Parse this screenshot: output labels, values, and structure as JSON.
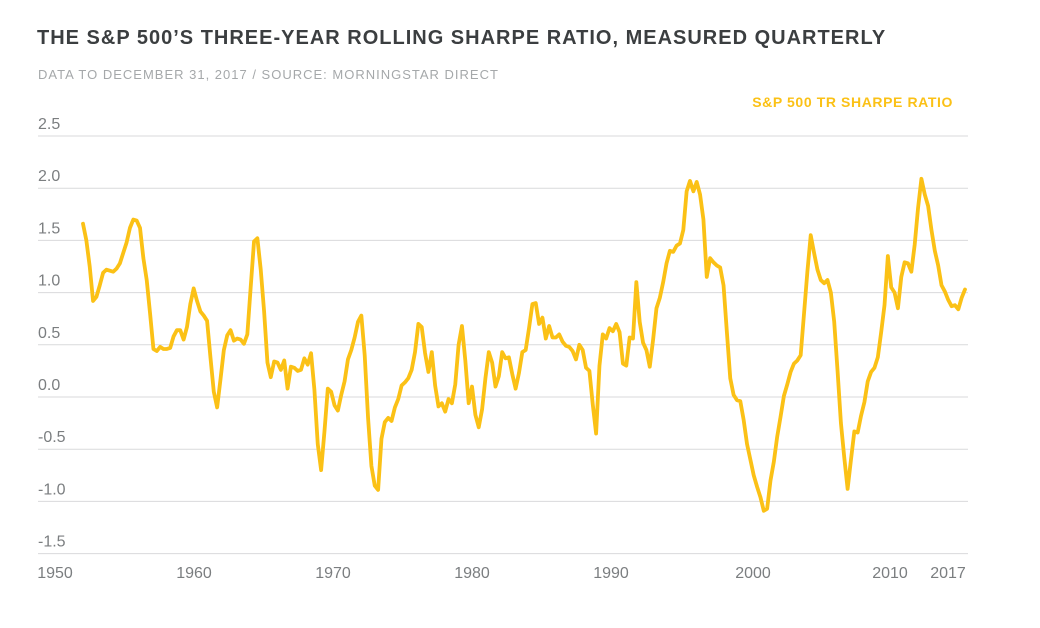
{
  "header": {
    "title": "THE S&P 500’S THREE-YEAR ROLLING SHARPE RATIO, MEASURED QUARTERLY",
    "subtitle": "DATA TO DECEMBER 31, 2017 / SOURCE: MORNINGSTAR DIRECT"
  },
  "legend": {
    "label": "S&P 500 TR SHARPE RATIO"
  },
  "colors": {
    "line": "#FBC116",
    "title_text": "#3B3E40",
    "subtitle_text": "#A5A8AA",
    "axis_text": "#7B7E80",
    "gridline": "#D9DADB",
    "background": "#FFFFFF"
  },
  "chart_data": {
    "type": "line",
    "title": "THE S&P 500’S THREE-YEAR ROLLING SHARPE RATIO, MEASURED QUARTERLY",
    "subtitle": "DATA TO DECEMBER 31, 2017 / SOURCE: MORNINGSTAR DIRECT",
    "grid": "horizontal",
    "legend_position": "top-right",
    "x_axis": {
      "tick_labels": [
        "1950",
        "1960",
        "1970",
        "1980",
        "1990",
        "2000",
        "2010",
        "2017"
      ]
    },
    "y_axis": {
      "tick_labels": [
        "2.5",
        "2.0",
        "1.5",
        "1.0",
        "0.5",
        "0.0",
        "-0.5",
        "-1.0",
        "-1.5"
      ],
      "min": -1.5,
      "max": 2.5
    },
    "series": [
      {
        "name": "S&P 500 TR SHARPE RATIO",
        "color": "#FBC116",
        "frequency": "quarterly",
        "x_start_year": 1952.0,
        "x_step_years": 0.25,
        "x_end_year": 2017.75,
        "values": [
          1.66,
          1.5,
          1.25,
          0.92,
          0.96,
          1.07,
          1.19,
          1.22,
          1.21,
          1.2,
          1.23,
          1.28,
          1.38,
          1.48,
          1.62,
          1.7,
          1.69,
          1.62,
          1.33,
          1.12,
          0.8,
          0.46,
          0.44,
          0.48,
          0.46,
          0.46,
          0.47,
          0.58,
          0.64,
          0.64,
          0.55,
          0.67,
          0.89,
          1.04,
          0.92,
          0.82,
          0.78,
          0.73,
          0.38,
          0.05,
          -0.1,
          0.17,
          0.45,
          0.59,
          0.64,
          0.54,
          0.56,
          0.55,
          0.51,
          0.6,
          1.05,
          1.49,
          1.52,
          1.22,
          0.82,
          0.33,
          0.19,
          0.34,
          0.33,
          0.26,
          0.35,
          0.08,
          0.29,
          0.28,
          0.25,
          0.26,
          0.37,
          0.31,
          0.42,
          0.07,
          -0.45,
          -0.7,
          -0.33,
          0.08,
          0.05,
          -0.08,
          -0.13,
          0.02,
          0.15,
          0.36,
          0.45,
          0.57,
          0.72,
          0.78,
          0.4,
          -0.2,
          -0.66,
          -0.85,
          -0.89,
          -0.4,
          -0.24,
          -0.2,
          -0.23,
          -0.1,
          -0.02,
          0.11,
          0.14,
          0.18,
          0.26,
          0.43,
          0.7,
          0.67,
          0.42,
          0.24,
          0.43,
          0.11,
          -0.09,
          -0.06,
          -0.14,
          -0.02,
          -0.06,
          0.12,
          0.5,
          0.68,
          0.35,
          -0.06,
          0.1,
          -0.17,
          -0.29,
          -0.12,
          0.18,
          0.43,
          0.33,
          0.1,
          0.2,
          0.43,
          0.37,
          0.38,
          0.22,
          0.08,
          0.23,
          0.43,
          0.45,
          0.66,
          0.89,
          0.9,
          0.7,
          0.76,
          0.56,
          0.68,
          0.57,
          0.57,
          0.6,
          0.53,
          0.49,
          0.48,
          0.44,
          0.36,
          0.5,
          0.45,
          0.28,
          0.25,
          -0.07,
          -0.35,
          0.3,
          0.6,
          0.56,
          0.66,
          0.63,
          0.7,
          0.62,
          0.32,
          0.3,
          0.57,
          0.56,
          1.1,
          0.72,
          0.52,
          0.45,
          0.29,
          0.55,
          0.85,
          0.95,
          1.1,
          1.28,
          1.4,
          1.39,
          1.45,
          1.47,
          1.6,
          1.97,
          2.07,
          1.97,
          2.06,
          1.94,
          1.7,
          1.15,
          1.33,
          1.29,
          1.26,
          1.24,
          1.07,
          0.62,
          0.18,
          0.02,
          -0.03,
          -0.04,
          -0.22,
          -0.45,
          -0.6,
          -0.75,
          -0.86,
          -0.96,
          -1.09,
          -1.07,
          -0.8,
          -0.62,
          -0.38,
          -0.19,
          0.01,
          0.12,
          0.24,
          0.32,
          0.35,
          0.4,
          0.8,
          1.2,
          1.55,
          1.38,
          1.22,
          1.12,
          1.09,
          1.12,
          1.0,
          0.72,
          0.25,
          -0.25,
          -0.58,
          -0.88,
          -0.6,
          -0.33,
          -0.34,
          -0.18,
          -0.05,
          0.15,
          0.24,
          0.28,
          0.38,
          0.62,
          0.88,
          1.35,
          1.05,
          1.0,
          0.85,
          1.15,
          1.29,
          1.28,
          1.2,
          1.46,
          1.81,
          2.09,
          1.94,
          1.83,
          1.6,
          1.4,
          1.26,
          1.07,
          1.01,
          0.93,
          0.87,
          0.88,
          0.84,
          0.95,
          1.03
        ]
      }
    ]
  }
}
